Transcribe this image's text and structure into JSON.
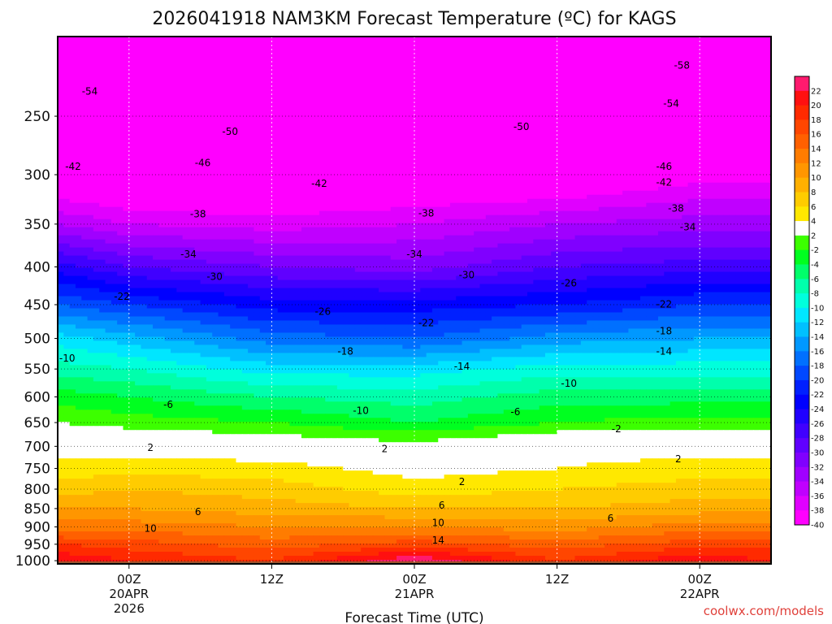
{
  "chart_data": {
    "type": "heatmap",
    "title": "2026041918 NAM3KM Forecast Temperature (ºC) for KAGS",
    "xlabel": "Forecast Time (UTC)",
    "ylabel": "",
    "credit": "coolwx.com/models",
    "y_axis": {
      "scale": "log-pressure",
      "range": [
        1010,
        195
      ],
      "ticks": [
        "250",
        "300",
        "350",
        "400",
        "450",
        "500",
        "550",
        "600",
        "650",
        "700",
        "750",
        "800",
        "850",
        "900",
        "950",
        "1000"
      ]
    },
    "x_axis": {
      "range_hours": [
        -6,
        54
      ],
      "ticks": [
        {
          "hour": 0,
          "l1": "00Z",
          "l2": "20APR",
          "l3": "2026"
        },
        {
          "hour": 12,
          "l1": "12Z",
          "l2": "",
          "l3": ""
        },
        {
          "hour": 24,
          "l1": "00Z",
          "l2": "21APR",
          "l3": ""
        },
        {
          "hour": 36,
          "l1": "12Z",
          "l2": "",
          "l3": ""
        },
        {
          "hour": 48,
          "l1": "00Z",
          "l2": "22APR",
          "l3": ""
        }
      ]
    },
    "colorbar": {
      "levels": [
        "22",
        "20",
        "18",
        "16",
        "14",
        "12",
        "10",
        "8",
        "6",
        "4",
        "2",
        "-2",
        "-4",
        "-6",
        "-8",
        "-10",
        "-12",
        "-14",
        "-16",
        "-18",
        "-20",
        "-22",
        "-24",
        "-26",
        "-28",
        "-30",
        "-32",
        "-34",
        "-36",
        "-38",
        "-40"
      ],
      "colors": [
        "#ff1a6e",
        "#ff1010",
        "#ff2a00",
        "#ff4600",
        "#ff6000",
        "#ff7c00",
        "#ff9600",
        "#ffb000",
        "#ffcc00",
        "#ffe800",
        "#ffffff",
        "#3cff00",
        "#00ff20",
        "#00ff6a",
        "#00ffac",
        "#00ffdc",
        "#00e6ff",
        "#00c0ff",
        "#0098ff",
        "#0070ff",
        "#0048ff",
        "#0020ff",
        "#0000ff",
        "#2000ff",
        "#4000ff",
        "#6000ff",
        "#8000ff",
        "#a000ff",
        "#c000ff",
        "#e000ff",
        "#ff00ff"
      ]
    },
    "temperature_profile": {
      "pressure_hpa": [
        1000,
        950,
        900,
        850,
        800,
        750,
        700,
        650,
        600,
        550,
        500,
        450,
        400,
        350,
        300,
        250,
        200
      ],
      "times_hours": [
        -6,
        0,
        12,
        24,
        36,
        48,
        54
      ],
      "series": [
        {
          "hour": -6,
          "values": [
            20,
            16,
            11,
            8,
            5,
            3,
            1,
            -2,
            -5,
            -9,
            -13,
            -20,
            -27,
            -36,
            -44,
            -52,
            -56
          ]
        },
        {
          "hour": 0,
          "values": [
            18,
            15,
            11,
            8,
            6,
            3,
            1,
            -3,
            -6,
            -10,
            -15,
            -22,
            -30,
            -38,
            -45,
            -52,
            -57
          ]
        },
        {
          "hour": 12,
          "values": [
            16,
            13,
            10,
            7,
            5,
            3,
            0,
            -4,
            -8,
            -13,
            -19,
            -25,
            -32,
            -39,
            -45,
            -51,
            -56
          ]
        },
        {
          "hour": 24,
          "values": [
            22,
            15,
            10,
            6,
            3,
            1,
            -1,
            -6,
            -9,
            -13,
            -20,
            -25,
            -33,
            -38,
            -44,
            -50,
            -57
          ]
        },
        {
          "hour": 36,
          "values": [
            16,
            13,
            9,
            6,
            4,
            2,
            1,
            -4,
            -7,
            -11,
            -17,
            -24,
            -30,
            -36,
            -44,
            -50,
            -57
          ]
        },
        {
          "hour": 48,
          "values": [
            20,
            15,
            11,
            7,
            5,
            3,
            1,
            -3,
            -7,
            -11,
            -16,
            -22,
            -29,
            -35,
            -41,
            -52,
            -58
          ]
        },
        {
          "hour": 54,
          "values": [
            18,
            15,
            11,
            7,
            5,
            3,
            1,
            -3,
            -7,
            -11,
            -16,
            -22,
            -29,
            -35,
            -41,
            -52,
            -58
          ]
        }
      ]
    },
    "contour_labels": [
      {
        "text": "-54",
        "hour": -3.3,
        "p": 231
      },
      {
        "text": "-58",
        "hour": 46.5,
        "p": 213
      },
      {
        "text": "-54",
        "hour": 45.6,
        "p": 240
      },
      {
        "text": "-50",
        "hour": 8.5,
        "p": 262
      },
      {
        "text": "-50",
        "hour": 33.0,
        "p": 258
      },
      {
        "text": "-42",
        "hour": -4.7,
        "p": 292
      },
      {
        "text": "-46",
        "hour": 6.2,
        "p": 289
      },
      {
        "text": "-46",
        "hour": 45.0,
        "p": 292
      },
      {
        "text": "-42",
        "hour": 16.0,
        "p": 308
      },
      {
        "text": "-42",
        "hour": 45.0,
        "p": 307
      },
      {
        "text": "-38",
        "hour": 5.8,
        "p": 339
      },
      {
        "text": "-38",
        "hour": 25.0,
        "p": 338
      },
      {
        "text": "-38",
        "hour": 46.0,
        "p": 333
      },
      {
        "text": "-34",
        "hour": 47.0,
        "p": 353
      },
      {
        "text": "-34",
        "hour": 5.0,
        "p": 384
      },
      {
        "text": "-34",
        "hour": 24.0,
        "p": 384
      },
      {
        "text": "-30",
        "hour": 7.2,
        "p": 412
      },
      {
        "text": "-30",
        "hour": 28.4,
        "p": 410
      },
      {
        "text": "-26",
        "hour": 37.0,
        "p": 420
      },
      {
        "text": "-22",
        "hour": -0.6,
        "p": 438
      },
      {
        "text": "-26",
        "hour": 16.3,
        "p": 459
      },
      {
        "text": "-22",
        "hour": 45.0,
        "p": 449
      },
      {
        "text": "-22",
        "hour": 25.0,
        "p": 476
      },
      {
        "text": "-18",
        "hour": 45.0,
        "p": 488
      },
      {
        "text": "-18",
        "hour": 18.2,
        "p": 520
      },
      {
        "text": "-14",
        "hour": 45.0,
        "p": 520
      },
      {
        "text": "-10",
        "hour": -5.2,
        "p": 531
      },
      {
        "text": "-14",
        "hour": 28.0,
        "p": 545
      },
      {
        "text": "-10",
        "hour": 37.0,
        "p": 575
      },
      {
        "text": "-6",
        "hour": 3.3,
        "p": 614
      },
      {
        "text": "-10",
        "hour": 19.5,
        "p": 626
      },
      {
        "text": "-6",
        "hour": 32.5,
        "p": 628
      },
      {
        "text": "-2",
        "hour": 41.0,
        "p": 662
      },
      {
        "text": "2",
        "hour": 1.8,
        "p": 702
      },
      {
        "text": "2",
        "hour": 21.5,
        "p": 705
      },
      {
        "text": "2",
        "hour": 46.2,
        "p": 727
      },
      {
        "text": "2",
        "hour": 28.0,
        "p": 781
      },
      {
        "text": "6",
        "hour": 5.8,
        "p": 858
      },
      {
        "text": "6",
        "hour": 26.3,
        "p": 840
      },
      {
        "text": "6",
        "hour": 40.5,
        "p": 875
      },
      {
        "text": "10",
        "hour": 1.8,
        "p": 904
      },
      {
        "text": "10",
        "hour": 26.0,
        "p": 888
      },
      {
        "text": "14",
        "hour": 26.0,
        "p": 937
      }
    ]
  }
}
